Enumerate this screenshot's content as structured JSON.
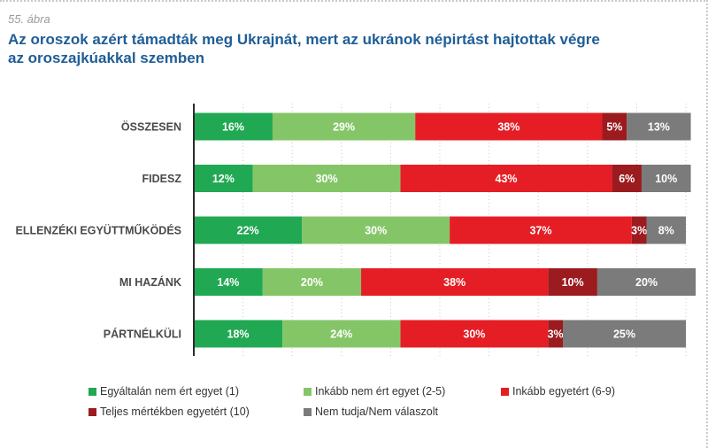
{
  "figure_label": "55. ábra",
  "title_line1": "Az oroszok azért támadták meg Ukrajnát, mert az ukránok népirtást hajtottak végre",
  "title_line2": "az oroszajkúakkal szemben",
  "chart_data": {
    "type": "bar",
    "orientation": "horizontal",
    "stacked": true,
    "categories": [
      "ÖSSZESEN",
      "FIDESZ",
      "ELLENZÉKI EGYÜTTMŰKÖDÉS",
      "MI HAZÁNK",
      "PÁRTNÉLKÜLI"
    ],
    "series": [
      {
        "name": "Egyáltalán nem ért egyet (1)",
        "color": "#21a853",
        "values": [
          16,
          12,
          22,
          14,
          18
        ]
      },
      {
        "name": "Inkább nem ért egyet (2-5)",
        "color": "#84c667",
        "values": [
          29,
          30,
          30,
          20,
          24
        ]
      },
      {
        "name": "Inkább egyetért (6-9)",
        "color": "#e51e25",
        "values": [
          38,
          43,
          37,
          38,
          30
        ]
      },
      {
        "name": "Teljes mértékben egyetért (10)",
        "color": "#9b1b1f",
        "values": [
          5,
          6,
          3,
          10,
          3
        ]
      },
      {
        "name": "Nem tudja/Nem válaszolt",
        "color": "#7b7b7b",
        "values": [
          13,
          10,
          8,
          20,
          25
        ]
      }
    ],
    "value_suffix": "%",
    "xlim": [
      0,
      100
    ],
    "grid": true,
    "legend_position": "bottom"
  }
}
